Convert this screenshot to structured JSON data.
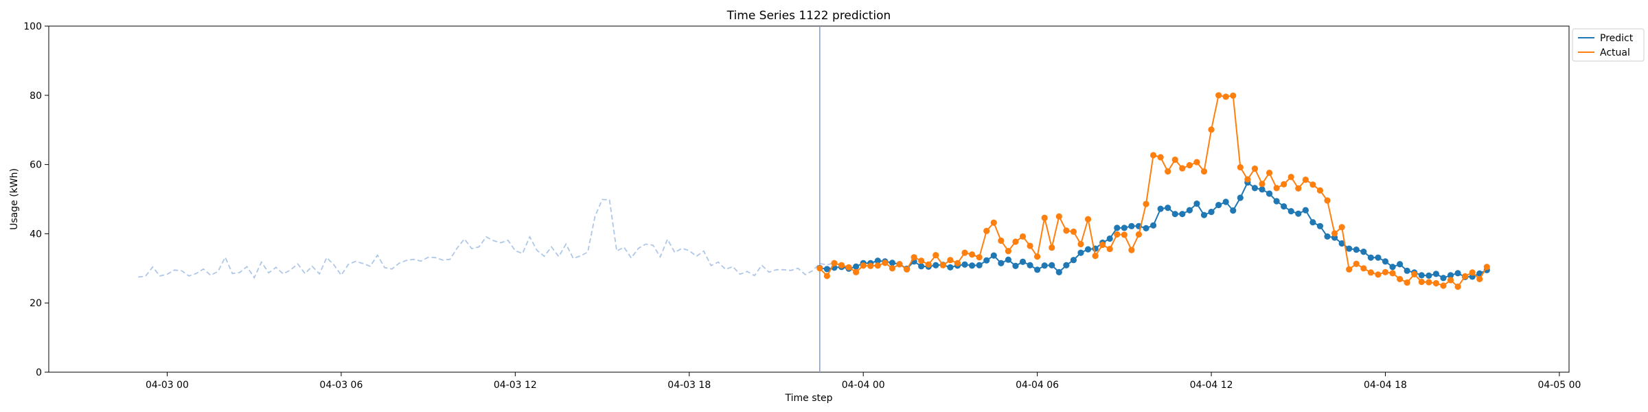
{
  "chart_data": {
    "type": "line",
    "title": "Time Series 1122 prediction",
    "xlabel": "Time step",
    "ylabel": "Usage (kWh)",
    "ylim": [
      0,
      100
    ],
    "yticks": [
      0,
      20,
      40,
      60,
      80,
      100
    ],
    "xlim": [
      "2024-04-02 19:55",
      "2024-04-05 00:20"
    ],
    "xticks": [
      {
        "t": "2024-04-03 00:00",
        "label": "04-03 00"
      },
      {
        "t": "2024-04-03 06:00",
        "label": "04-03 06"
      },
      {
        "t": "2024-04-03 12:00",
        "label": "04-03 12"
      },
      {
        "t": "2024-04-03 18:00",
        "label": "04-03 18"
      },
      {
        "t": "2024-04-04 00:00",
        "label": "04-04 00"
      },
      {
        "t": "2024-04-04 06:00",
        "label": "04-04 06"
      },
      {
        "t": "2024-04-04 12:00",
        "label": "04-04 12"
      },
      {
        "t": "2024-04-04 18:00",
        "label": "04-04 18"
      },
      {
        "t": "2024-04-05 00:00",
        "label": "04-05 00"
      }
    ],
    "grid": false,
    "legend_position": "upper right, outside plot",
    "forecast_start": "2024-04-03 22:30",
    "interval_minutes": 15,
    "history": {
      "start": "2024-04-02 23:00",
      "color": "#aec7e8",
      "style": "dashed",
      "values": [
        27.5,
        27.7,
        30.4,
        27.8,
        28.3,
        29.5,
        29.3,
        27.8,
        28.5,
        29.8,
        28.0,
        29.1,
        33.2,
        28.5,
        28.8,
        30.5,
        27.3,
        31.8,
        28.7,
        30.3,
        28.4,
        29.5,
        31.3,
        28.5,
        30.6,
        28.4,
        33.1,
        31.0,
        28.0,
        31.2,
        32.0,
        31.4,
        30.6,
        33.8,
        30.2,
        29.8,
        31.5,
        32.3,
        32.6,
        32.1,
        33.2,
        33.1,
        32.4,
        32.6,
        35.9,
        38.5,
        35.7,
        36.2,
        39.1,
        38.0,
        37.4,
        38.1,
        35.1,
        34.3,
        39.1,
        35.2,
        33.5,
        36.2,
        33.4,
        37.0,
        32.9,
        33.6,
        34.7,
        45.0,
        49.9,
        49.8,
        35.0,
        36.1,
        33.0,
        35.8,
        37.0,
        36.7,
        33.3,
        38.4,
        34.6,
        35.8,
        35.1,
        33.5,
        35.0,
        30.8,
        31.8,
        29.7,
        30.5,
        28.3,
        29.1,
        27.9,
        30.9,
        28.9,
        29.6,
        29.6,
        29.4,
        30.0,
        28.2,
        29.3,
        31.4,
        31.0,
        31.6
      ]
    },
    "series": [
      {
        "name": "Predict",
        "color": "#1f77b4",
        "values": [
          30.1,
          29.8,
          30.2,
          30.4,
          29.9,
          30.5,
          31.5,
          31.5,
          32.2,
          32.0,
          31.6,
          31.2,
          29.9,
          32.0,
          30.6,
          30.5,
          30.9,
          31.0,
          30.3,
          30.8,
          31.1,
          30.8,
          30.9,
          32.3,
          33.7,
          31.5,
          32.5,
          30.7,
          31.9,
          30.9,
          29.6,
          30.8,
          30.9,
          28.9,
          30.9,
          32.4,
          34.5,
          35.5,
          35.7,
          37.4,
          38.6,
          41.7,
          41.7,
          42.2,
          42.2,
          41.6,
          42.4,
          47.2,
          47.5,
          45.7,
          45.7,
          46.8,
          48.7,
          45.4,
          46.3,
          48.3,
          49.2,
          46.7,
          50.4,
          54.8,
          53.2,
          52.8,
          51.6,
          49.4,
          47.9,
          46.5,
          45.8,
          46.8,
          43.3,
          42.2,
          39.2,
          38.9,
          37.2,
          35.7,
          35.4,
          34.8,
          33.1,
          33.1,
          32.0,
          30.4,
          31.2,
          29.3,
          28.8,
          28.0,
          27.9,
          28.4,
          27.2,
          28.0,
          28.6,
          27.5,
          27.6,
          28.5,
          29.5
        ]
      },
      {
        "name": "Actual",
        "color": "#ff7f0e",
        "values": [
          30.0,
          27.8,
          31.5,
          30.9,
          30.3,
          28.9,
          30.8,
          30.7,
          30.8,
          31.6,
          30.0,
          31.2,
          29.7,
          33.2,
          32.2,
          31.1,
          33.8,
          30.9,
          32.4,
          31.5,
          34.5,
          34.0,
          33.2,
          40.8,
          43.2,
          38.0,
          35.0,
          37.7,
          39.2,
          36.5,
          33.4,
          44.6,
          36.0,
          45.0,
          40.9,
          40.6,
          37.0,
          44.2,
          33.6,
          36.8,
          35.6,
          39.8,
          39.7,
          35.3,
          39.8,
          48.6,
          62.7,
          62.1,
          58.0,
          61.4,
          58.9,
          59.8,
          60.7,
          58.0,
          70.1,
          80.0,
          79.6,
          79.9,
          59.2,
          55.7,
          58.8,
          54.4,
          57.6,
          53.2,
          54.3,
          56.4,
          53.1,
          55.6,
          54.2,
          52.5,
          49.6,
          40.1,
          41.9,
          29.7,
          31.3,
          30.0,
          28.8,
          28.2,
          28.9,
          28.6,
          26.9,
          25.9,
          28.3,
          26.1,
          26.0,
          25.7,
          25.0,
          26.6,
          24.7,
          27.7,
          28.8,
          26.9,
          30.4
        ]
      }
    ]
  }
}
